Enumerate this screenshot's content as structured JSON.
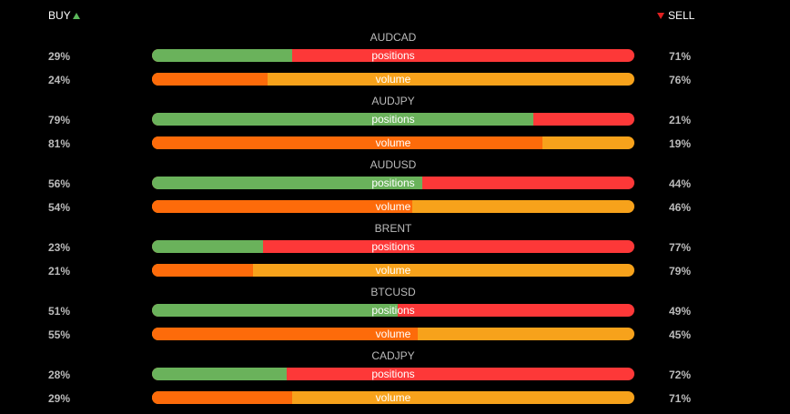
{
  "header": {
    "buy_label": "BUY",
    "sell_label": "SELL"
  },
  "colors": {
    "buy_positions": "#6ab25b",
    "sell_positions": "#fd3838",
    "buy_volume": "#fd6b0a",
    "sell_volume": "#f7a21b",
    "buy_arrow": "#5cb85c",
    "sell_arrow": "#e02020"
  },
  "icons": {
    "buy": "triangle-up-icon",
    "sell": "triangle-down-icon"
  },
  "bar_labels": {
    "positions": "positions",
    "volume": "volume"
  },
  "instruments": [
    {
      "symbol": "AUDCAD",
      "positions": {
        "buy": 29,
        "sell": 71,
        "buy_text": "29%",
        "sell_text": "71%"
      },
      "volume": {
        "buy": 24,
        "sell": 76,
        "buy_text": "24%",
        "sell_text": "76%"
      }
    },
    {
      "symbol": "AUDJPY",
      "positions": {
        "buy": 79,
        "sell": 21,
        "buy_text": "79%",
        "sell_text": "21%"
      },
      "volume": {
        "buy": 81,
        "sell": 19,
        "buy_text": "81%",
        "sell_text": "19%"
      }
    },
    {
      "symbol": "AUDUSD",
      "positions": {
        "buy": 56,
        "sell": 44,
        "buy_text": "56%",
        "sell_text": "44%"
      },
      "volume": {
        "buy": 54,
        "sell": 46,
        "buy_text": "54%",
        "sell_text": "46%"
      }
    },
    {
      "symbol": "BRENT",
      "positions": {
        "buy": 23,
        "sell": 77,
        "buy_text": "23%",
        "sell_text": "77%"
      },
      "volume": {
        "buy": 21,
        "sell": 79,
        "buy_text": "21%",
        "sell_text": "79%"
      }
    },
    {
      "symbol": "BTCUSD",
      "positions": {
        "buy": 51,
        "sell": 49,
        "buy_text": "51%",
        "sell_text": "49%"
      },
      "volume": {
        "buy": 55,
        "sell": 45,
        "buy_text": "55%",
        "sell_text": "45%"
      }
    },
    {
      "symbol": "CADJPY",
      "positions": {
        "buy": 28,
        "sell": 72,
        "buy_text": "28%",
        "sell_text": "72%"
      },
      "volume": {
        "buy": 29,
        "sell": 71,
        "buy_text": "29%",
        "sell_text": "71%"
      }
    }
  ]
}
